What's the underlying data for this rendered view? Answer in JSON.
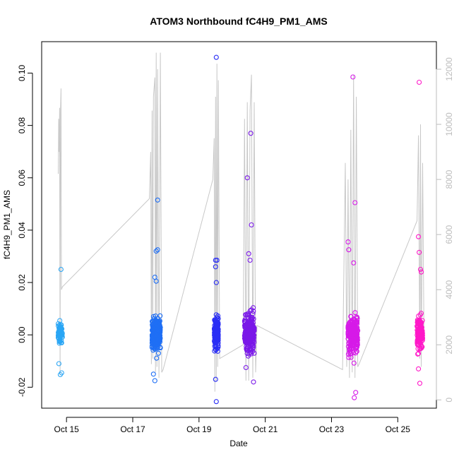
{
  "chart_data": {
    "type": "scatter",
    "title": "ATOM3 Northbound fC4H9_PM1_AMS",
    "xlabel": "Date",
    "ylabel": "fC4H9_PM1_AMS",
    "x_is_date": true,
    "xlim": [
      "2016-10-14 06:00",
      "2016-10-26 04:00"
    ],
    "ylim": [
      -0.028,
      0.112
    ],
    "yticks": [
      -0.02,
      0.0,
      0.02,
      0.04,
      0.06,
      0.08,
      0.1
    ],
    "ytick_labels": [
      "-0.02",
      "0.00",
      "0.02",
      "0.04",
      "0.06",
      "0.08",
      "0.10"
    ],
    "xticks": [
      "2016-10-15",
      "2016-10-17",
      "2016-10-19",
      "2016-10-21",
      "2016-10-23",
      "2016-10-25"
    ],
    "xtick_labels": [
      "Oct 15",
      "Oct 17",
      "Oct 19",
      "Oct 21",
      "Oct 23",
      "Oct 25"
    ],
    "y2lim": [
      -300,
      13000
    ],
    "y2ticks": [
      0,
      2000,
      4000,
      6000,
      8000,
      10000,
      12000
    ],
    "y2tick_labels": [
      "0",
      "2000",
      "4000",
      "6000",
      "8000",
      "10000",
      "12000"
    ],
    "grid": false,
    "marker": "open-circle",
    "colors": {
      "oct15": "#2aa6f5",
      "oct17": "#1f6ff5",
      "oct19": "#2a2ef5",
      "oct20": "#7a18e8",
      "oct23": "#d61ae8",
      "oct25": "#ff18c8",
      "secondary_line": "#c8c8c8"
    },
    "series": [
      {
        "id": "oct15",
        "start": "2016-10-14 18:00",
        "end": "2016-10-14 21:00",
        "spread": 0.0045,
        "n": 70,
        "center": 0.0005,
        "outliers": [
          {
            "x": "2016-10-14 20:00",
            "y": 0.025
          },
          {
            "x": "2016-10-14 18:30",
            "y": -0.011
          },
          {
            "x": "2016-10-14 19:30",
            "y": -0.0152
          },
          {
            "x": "2016-10-14 20:30",
            "y": -0.0145
          }
        ]
      },
      {
        "id": "oct17",
        "start": "2016-10-17 14:00",
        "end": "2016-10-17 20:00",
        "spread": 0.0065,
        "n": 260,
        "center": 0.0005,
        "outliers": [
          {
            "x": "2016-10-17 18:00",
            "y": 0.0515
          },
          {
            "x": "2016-10-17 17:00",
            "y": 0.032
          },
          {
            "x": "2016-10-17 18:00",
            "y": 0.0325
          },
          {
            "x": "2016-10-17 16:00",
            "y": 0.022
          },
          {
            "x": "2016-10-17 17:00",
            "y": 0.0205
          },
          {
            "x": "2016-10-17 15:00",
            "y": -0.015
          },
          {
            "x": "2016-10-17 16:00",
            "y": -0.0175
          }
        ]
      },
      {
        "id": "oct19",
        "start": "2016-10-19 11:00",
        "end": "2016-10-19 14:00",
        "spread": 0.0065,
        "n": 150,
        "center": 0.0005,
        "outliers": [
          {
            "x": "2016-10-19 12:30",
            "y": 0.106
          },
          {
            "x": "2016-10-19 12:00",
            "y": 0.0285
          },
          {
            "x": "2016-10-19 13:00",
            "y": 0.0285
          },
          {
            "x": "2016-10-19 12:00",
            "y": 0.026
          },
          {
            "x": "2016-10-19 12:30",
            "y": 0.02
          },
          {
            "x": "2016-10-19 12:30",
            "y": -0.0255
          },
          {
            "x": "2016-10-19 12:00",
            "y": -0.017
          }
        ]
      },
      {
        "id": "oct20",
        "start": "2016-10-20 09:00",
        "end": "2016-10-20 16:00",
        "spread": 0.0075,
        "n": 230,
        "center": 0.001,
        "outliers": [
          {
            "x": "2016-10-20 13:30",
            "y": 0.077
          },
          {
            "x": "2016-10-20 11:00",
            "y": 0.06
          },
          {
            "x": "2016-10-20 14:00",
            "y": 0.042
          },
          {
            "x": "2016-10-20 12:00",
            "y": 0.031
          },
          {
            "x": "2016-10-20 13:00",
            "y": 0.0285
          },
          {
            "x": "2016-10-20 10:00",
            "y": -0.0125
          },
          {
            "x": "2016-10-20 15:30",
            "y": -0.018
          }
        ]
      },
      {
        "id": "oct23",
        "start": "2016-10-23 12:00",
        "end": "2016-10-23 19:00",
        "spread": 0.0075,
        "n": 230,
        "center": 0.0005,
        "outliers": [
          {
            "x": "2016-10-23 15:30",
            "y": 0.0985
          },
          {
            "x": "2016-10-23 17:00",
            "y": 0.0505
          },
          {
            "x": "2016-10-23 12:00",
            "y": 0.0355
          },
          {
            "x": "2016-10-23 12:30",
            "y": 0.0325
          },
          {
            "x": "2016-10-23 16:00",
            "y": 0.0275
          },
          {
            "x": "2016-10-23 17:30",
            "y": -0.022
          },
          {
            "x": "2016-10-23 16:30",
            "y": -0.024
          }
        ]
      },
      {
        "id": "oct25",
        "start": "2016-10-25 14:00",
        "end": "2016-10-25 18:00",
        "spread": 0.0065,
        "n": 140,
        "center": 0.001,
        "outliers": [
          {
            "x": "2016-10-25 15:30",
            "y": 0.0965
          },
          {
            "x": "2016-10-25 15:00",
            "y": 0.0375
          },
          {
            "x": "2016-10-25 15:30",
            "y": 0.0315
          },
          {
            "x": "2016-10-25 16:30",
            "y": 0.025
          },
          {
            "x": "2016-10-25 17:00",
            "y": 0.024
          },
          {
            "x": "2016-10-25 16:00",
            "y": -0.0185
          },
          {
            "x": "2016-10-25 15:00",
            "y": -0.013
          }
        ]
      }
    ],
    "secondary_series": {
      "axis": "right",
      "style": "line",
      "points": [
        [
          "2016-10-14 18:00",
          8200
        ],
        [
          "2016-10-14 18:20",
          10200
        ],
        [
          "2016-10-14 18:40",
          9000
        ],
        [
          "2016-10-14 19:00",
          10600
        ],
        [
          "2016-10-14 19:20",
          900
        ],
        [
          "2016-10-14 19:40",
          10500
        ],
        [
          "2016-10-14 20:00",
          11300
        ],
        [
          "2016-10-14 20:20",
          4000
        ],
        [
          "2016-10-14 21:00",
          4100
        ],
        [
          "2016-10-17 12:00",
          7300
        ],
        [
          "2016-10-17 13:00",
          9000
        ],
        [
          "2016-10-17 13:30",
          1300
        ],
        [
          "2016-10-17 14:00",
          10500
        ],
        [
          "2016-10-17 14:30",
          1500
        ],
        [
          "2016-10-17 15:00",
          11000
        ],
        [
          "2016-10-17 16:00",
          11700
        ],
        [
          "2016-10-17 16:30",
          1000
        ],
        [
          "2016-10-17 17:00",
          12600
        ],
        [
          "2016-10-17 17:30",
          1200
        ],
        [
          "2016-10-17 18:00",
          12000
        ],
        [
          "2016-10-17 19:00",
          800
        ],
        [
          "2016-10-17 20:00",
          12600
        ],
        [
          "2016-10-17 21:00",
          1000
        ],
        [
          "2016-10-17 22:00",
          1100
        ],
        [
          "2016-10-19 10:00",
          8000
        ],
        [
          "2016-10-19 11:00",
          9500
        ],
        [
          "2016-10-19 11:30",
          300
        ],
        [
          "2016-10-19 12:00",
          11000
        ],
        [
          "2016-10-19 12:30",
          700
        ],
        [
          "2016-10-19 13:00",
          12200
        ],
        [
          "2016-10-19 13:30",
          1200
        ],
        [
          "2016-10-19 14:00",
          11600
        ],
        [
          "2016-10-19 15:00",
          1500
        ],
        [
          "2016-10-20 08:00",
          2000
        ],
        [
          "2016-10-20 09:00",
          10200
        ],
        [
          "2016-10-20 10:00",
          700
        ],
        [
          "2016-10-20 11:00",
          10800
        ],
        [
          "2016-10-20 12:00",
          700
        ],
        [
          "2016-10-20 13:00",
          10500
        ],
        [
          "2016-10-20 14:00",
          11800
        ],
        [
          "2016-10-20 15:00",
          800
        ],
        [
          "2016-10-20 16:00",
          10800
        ],
        [
          "2016-10-20 17:00",
          1000
        ],
        [
          "2016-10-20 18:00",
          2700
        ],
        [
          "2016-10-23 08:00",
          1100
        ],
        [
          "2016-10-23 10:00",
          8600
        ],
        [
          "2016-10-23 11:00",
          1200
        ],
        [
          "2016-10-23 12:00",
          8000
        ],
        [
          "2016-10-23 13:00",
          800
        ],
        [
          "2016-10-23 14:00",
          9800
        ],
        [
          "2016-10-23 15:00",
          1000
        ],
        [
          "2016-10-23 16:00",
          11800
        ],
        [
          "2016-10-23 17:00",
          800
        ],
        [
          "2016-10-23 18:00",
          11000
        ],
        [
          "2016-10-23 19:00",
          1200
        ],
        [
          "2016-10-23 20:00",
          1300
        ],
        [
          "2016-10-25 14:00",
          6500
        ],
        [
          "2016-10-25 15:00",
          9600
        ],
        [
          "2016-10-25 16:00",
          1500
        ],
        [
          "2016-10-25 16:30",
          10000
        ],
        [
          "2016-10-25 17:00",
          1200
        ],
        [
          "2016-10-25 18:00",
          8600
        ],
        [
          "2016-10-25 19:00",
          2200
        ]
      ]
    }
  }
}
